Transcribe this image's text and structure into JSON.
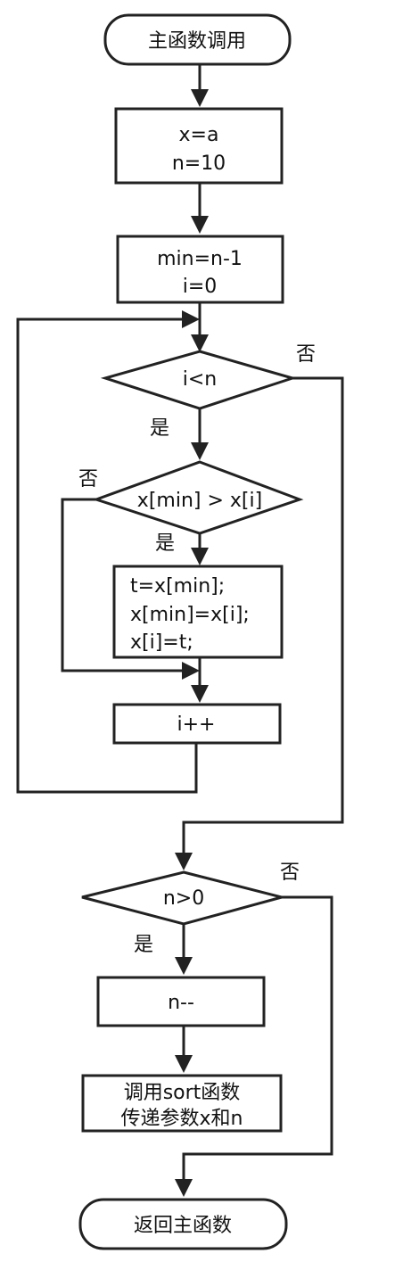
{
  "flowchart": {
    "start": "主函数调用",
    "assign_1": [
      "x=a",
      "n=10"
    ],
    "assign_2": [
      "min=n-1",
      "i=0"
    ],
    "decision_loop": "i<n",
    "decision_compare": "x[min] > x[i]",
    "swap": [
      "t=x[min];",
      "x[min]=x[i];",
      "x[i]=t;"
    ],
    "increment": "i++",
    "decision_n": "n>0",
    "decrement": "n--",
    "call_sort": [
      "调用sort函数",
      "传递参数x和n"
    ],
    "end": "返回主函数",
    "yes_label": "是",
    "no_label": "否"
  }
}
